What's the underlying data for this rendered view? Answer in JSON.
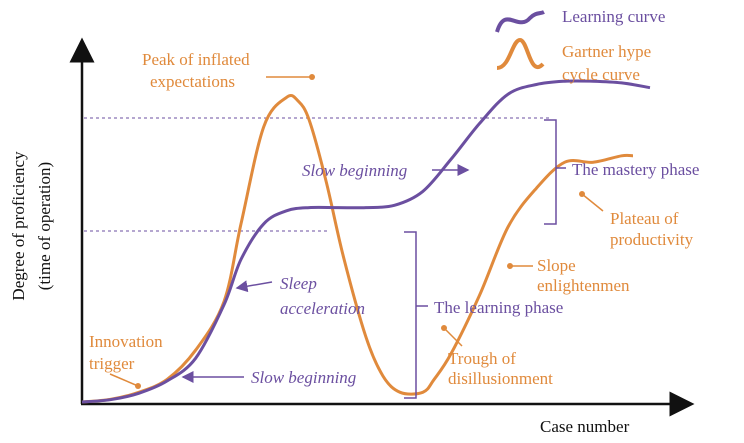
{
  "chart_data": {
    "type": "line",
    "title": "",
    "xlabel": "Case number",
    "ylabel_line1": "Degree of proficiency",
    "ylabel_line2": "(time of operation)",
    "xlim": [
      0,
      100
    ],
    "ylim": [
      0,
      100
    ],
    "colors": {
      "learning": "#6b4fa0",
      "gartner": "#e08a3c",
      "axis": "#111111"
    },
    "series": [
      {
        "name": "Learning curve",
        "x": [
          0,
          5,
          10,
          15,
          20,
          25,
          28,
          32,
          36,
          40,
          45,
          50,
          55,
          60,
          65,
          70,
          75,
          80,
          85,
          90,
          95,
          100
        ],
        "y": [
          0,
          0.7,
          2.7,
          6.5,
          13.5,
          30,
          44,
          55,
          59,
          60,
          60,
          60,
          60.7,
          65,
          75,
          86,
          95,
          98,
          99,
          99,
          98.5,
          97
        ]
      },
      {
        "name": "Gartner hype cycle curve",
        "x": [
          0,
          5,
          10,
          15,
          20,
          25,
          28,
          32,
          36,
          38,
          40,
          43,
          46,
          50,
          53,
          56,
          60,
          62,
          65,
          70,
          75,
          80,
          85,
          90,
          95,
          97
        ],
        "y": [
          0,
          0.8,
          3,
          7,
          16,
          31,
          55,
          85,
          94,
          93,
          87,
          68,
          45,
          20,
          8,
          3,
          3,
          7,
          15,
          33,
          54,
          66,
          74,
          74,
          76,
          76
        ]
      }
    ],
    "legend": [
      {
        "label": "Learning curve",
        "series": "Learning curve"
      },
      {
        "label_line1": "Gartner hype",
        "label_line2": "cycle curve",
        "series": "Gartner hype cycle curve"
      }
    ],
    "annotations": {
      "peak": {
        "line1": "Peak of inflated",
        "line2": "expectations"
      },
      "slow_beginning_top": "Slow beginning",
      "mastery_phase": "The mastery phase",
      "plateau": {
        "line1": "Plateau of",
        "line2": "productivity"
      },
      "sleep_acceleration": {
        "line1": "Sleep",
        "line2": "acceleration"
      },
      "slope": {
        "line1": "Slope",
        "line2": "enlightenmen"
      },
      "learning_phase": "The learning phase",
      "innovation": {
        "line1": "Innovation",
        "line2": "trigger"
      },
      "trough": {
        "line1": "Trough of",
        "line2": "disillusionment"
      },
      "slow_beginning_bottom": "Slow beginning"
    }
  }
}
